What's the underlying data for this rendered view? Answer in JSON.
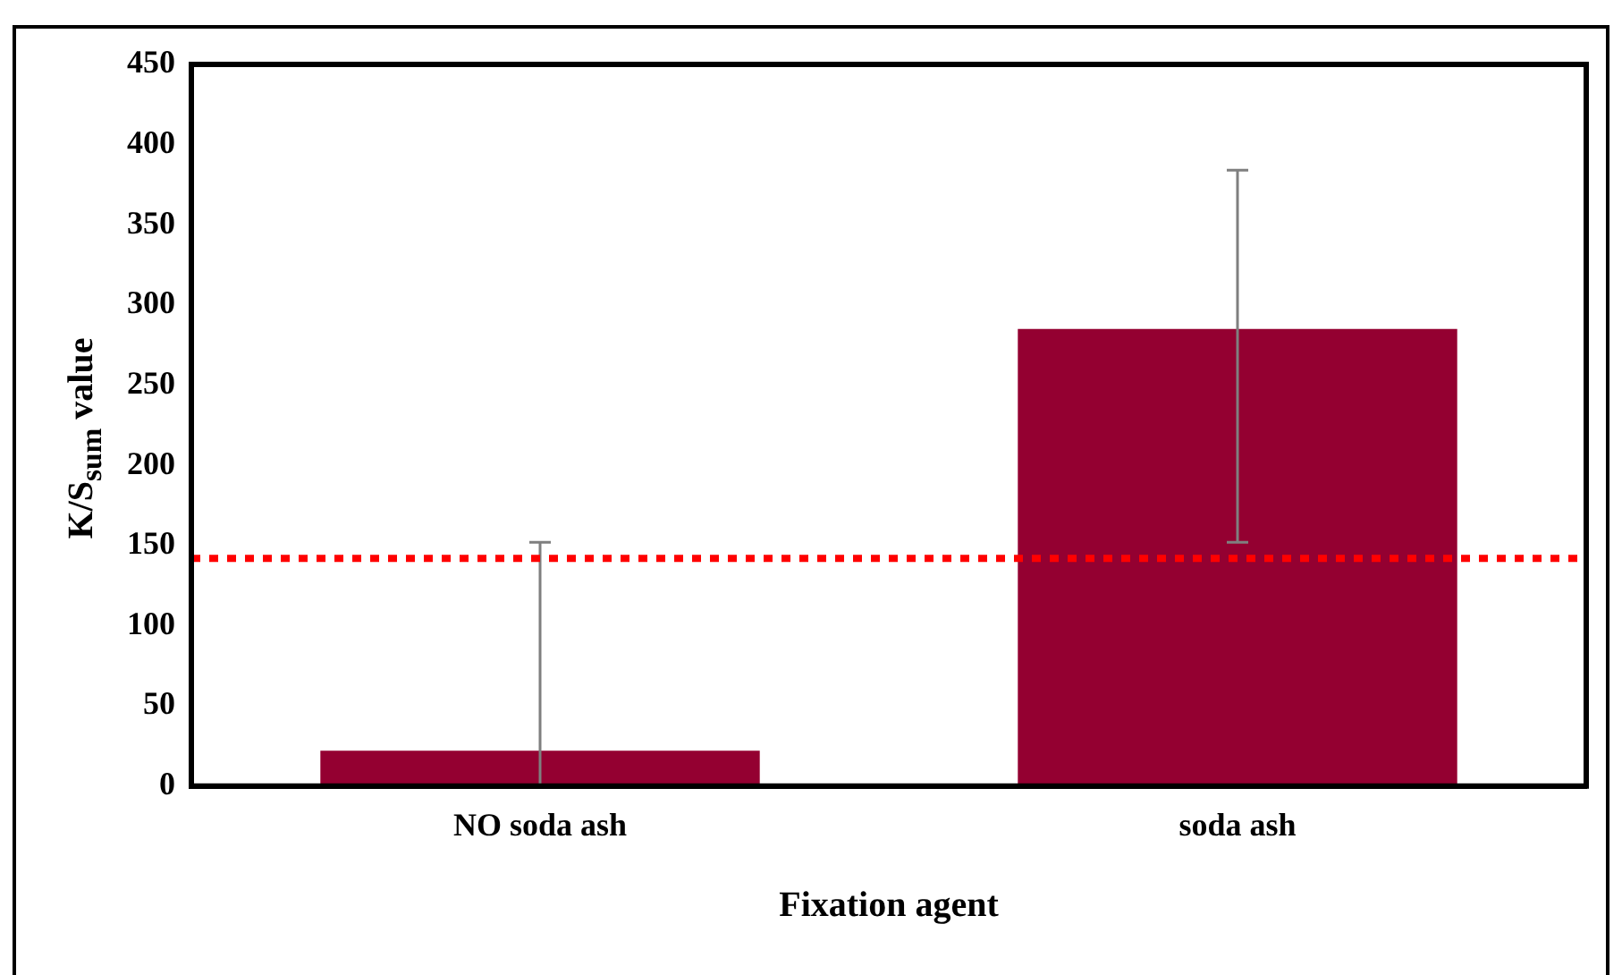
{
  "chart_data": {
    "type": "bar",
    "xlabel": "Fixation agent",
    "ylabel": "K/S$_{sum}$ value",
    "categories": [
      "NO soda ash",
      "soda ash"
    ],
    "values": [
      22,
      285
    ],
    "color": "#940031",
    "errors": [
      [
        0,
        152
      ],
      [
        152,
        384
      ]
    ],
    "ylim": [
      0,
      450
    ],
    "yticks": [
      0,
      50,
      100,
      150,
      200,
      250,
      300,
      350,
      400,
      450
    ],
    "ref_lines": [
      {
        "axis": "y",
        "value": 142,
        "color": "#ff0000",
        "line_style": "dotted"
      }
    ],
    "grid": false,
    "legend": false
  }
}
